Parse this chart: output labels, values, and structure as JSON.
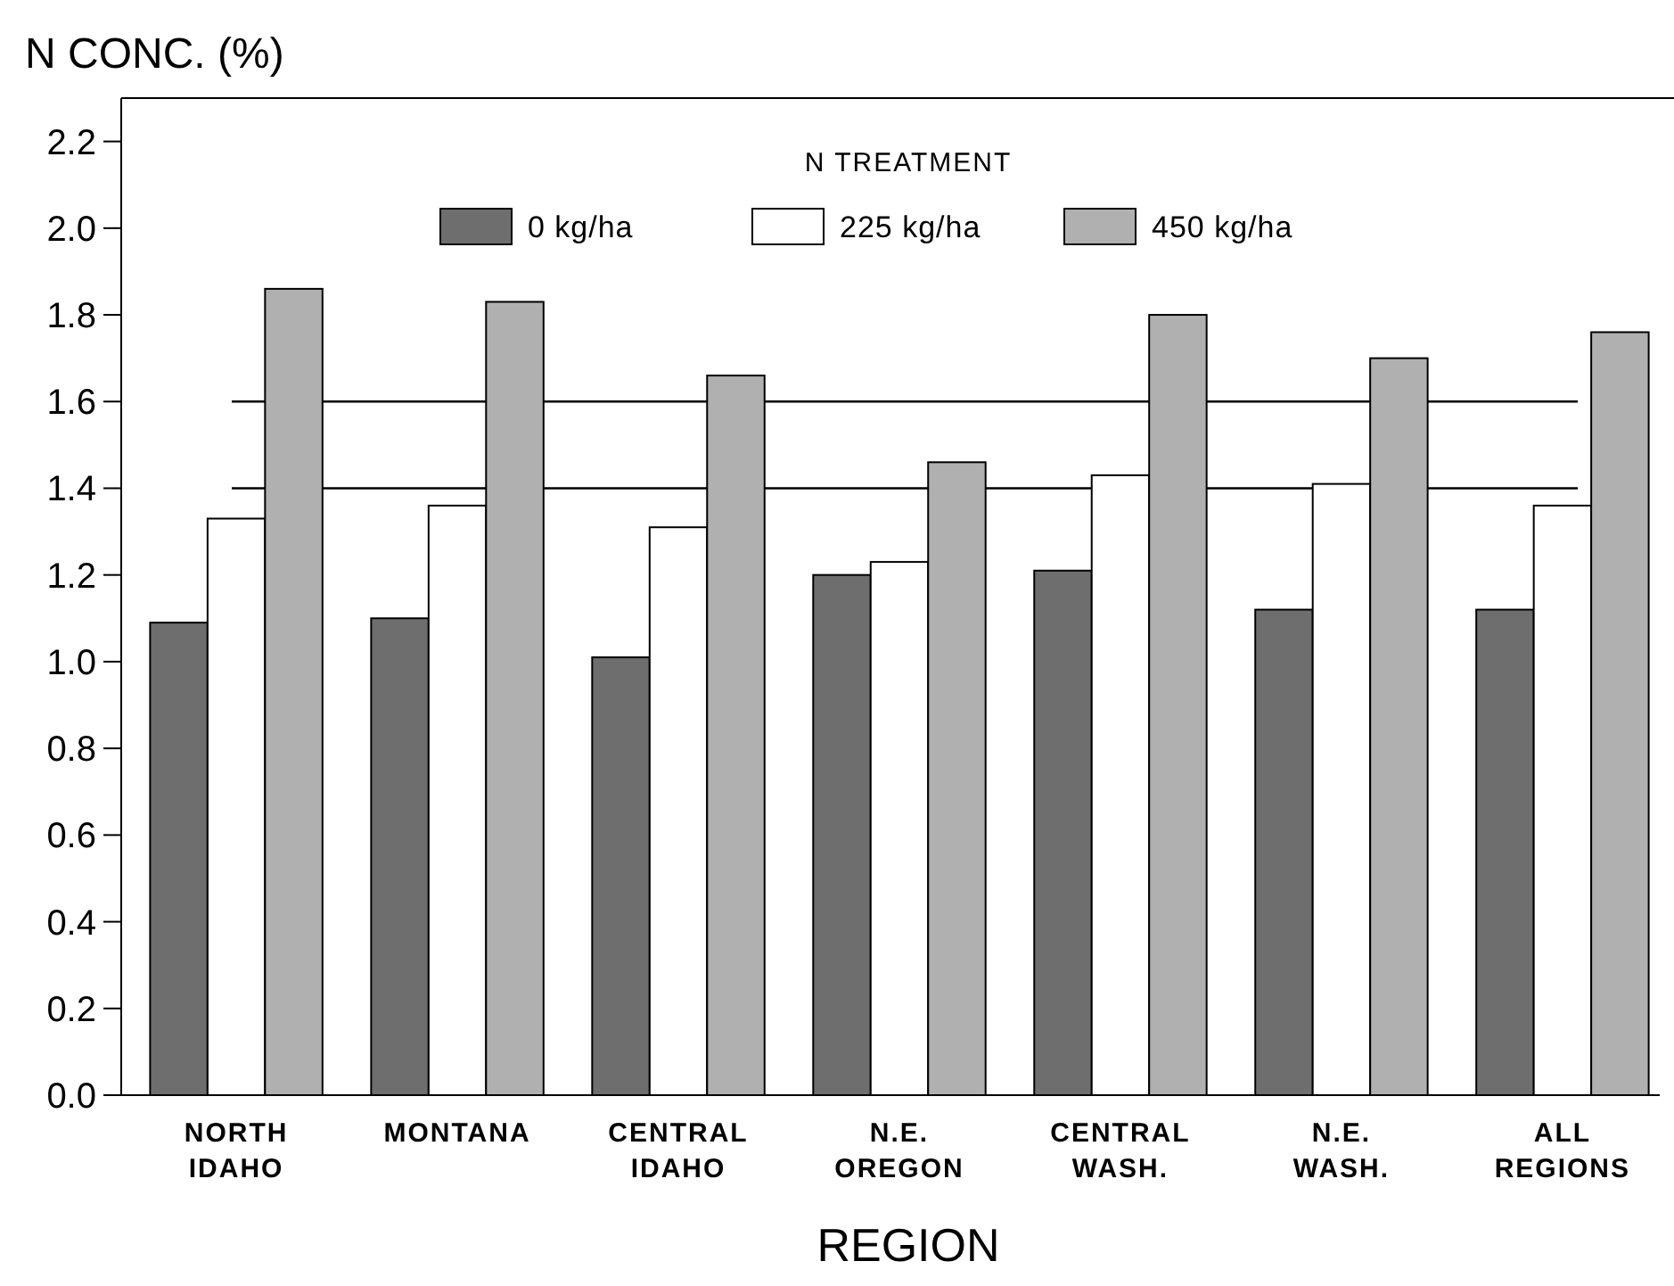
{
  "chart_data": {
    "type": "bar",
    "ylabel": "N CONC. (%)",
    "xlabel": "REGION",
    "legend_title": "N TREATMENT",
    "categories": [
      "NORTH\nIDAHO",
      "MONTANA",
      "CENTRAL\nIDAHO",
      "N.E.\nOREGON",
      "CENTRAL\nWASH.",
      "N.E.\nWASH.",
      "ALL\nREGIONS"
    ],
    "series": [
      {
        "name": "0 kg/ha",
        "color": "#6e6e6e",
        "values": [
          1.09,
          1.1,
          1.01,
          1.2,
          1.21,
          1.12,
          1.12
        ]
      },
      {
        "name": "225 kg/ha",
        "color": "#ffffff",
        "values": [
          1.33,
          1.36,
          1.31,
          1.23,
          1.43,
          1.41,
          1.36
        ]
      },
      {
        "name": "450 kg/ha",
        "color": "#b0b0b0",
        "values": [
          1.86,
          1.83,
          1.66,
          1.46,
          1.8,
          1.7,
          1.76
        ]
      }
    ],
    "ylim": [
      0,
      2.3
    ],
    "yticks": [
      {
        "value": 0,
        "label": "0.0"
      },
      {
        "value": 0.2,
        "label": "0.2"
      },
      {
        "value": 0.4,
        "label": "0.4"
      },
      {
        "value": 0.6,
        "label": "0.6"
      },
      {
        "value": 0.8,
        "label": "0.8"
      },
      {
        "value": 1,
        "label": "1.0"
      },
      {
        "value": 1.2,
        "label": "1.2"
      },
      {
        "value": 1.4,
        "label": "1.4"
      },
      {
        "value": 1.6,
        "label": "1.6"
      },
      {
        "value": 1.8,
        "label": "1.8"
      },
      {
        "value": 2,
        "label": "2.0"
      },
      {
        "value": 2.2,
        "label": "2.2"
      }
    ],
    "ref_lines": [
      {
        "axis": "y",
        "value": 1.4,
        "color": "#000000"
      },
      {
        "axis": "y",
        "value": 1.6,
        "color": "#000000"
      }
    ],
    "legend": "top",
    "grid": false
  }
}
